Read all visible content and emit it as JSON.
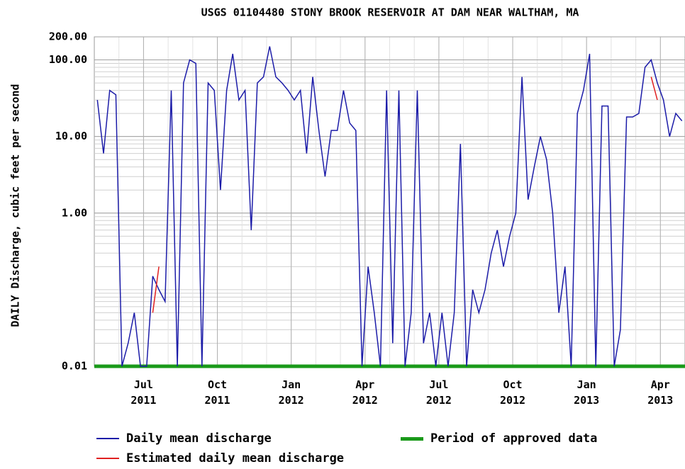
{
  "chart_data": {
    "type": "line",
    "title": "USGS 01104480 STONY BROOK RESERVOIR AT DAM NEAR WALTHAM, MA",
    "y_label": "DAILY Discharge, cubic feet per second",
    "log_scale": true,
    "grid": true,
    "ylim": [
      0.01,
      200
    ],
    "yticks": [
      0.01,
      {
        "value": 1,
        "label": "1.00"
      },
      {
        "value": 10,
        "label": "10.00"
      },
      {
        "value": 100,
        "label": "100.00"
      },
      {
        "value": 200,
        "label": "200.00"
      }
    ],
    "xlim": [
      "2011-05",
      "2013-04"
    ],
    "xticks": [
      {
        "value": "2011-07",
        "label": "Jul\n2011"
      },
      {
        "value": "2011-10",
        "label": "Oct\n2011"
      },
      {
        "value": "2012-01",
        "label": "Jan\n2012"
      },
      {
        "value": "2012-04",
        "label": "Apr\n2012"
      },
      {
        "value": "2012-07",
        "label": "Jul\n2012"
      },
      {
        "value": "2012-10",
        "label": "Oct\n2012"
      },
      {
        "value": "2013-01",
        "label": "Jan\n2013"
      },
      {
        "value": "2013-04",
        "label": "Apr\n2013"
      }
    ],
    "x": [
      "2011-05",
      "2011-05",
      "2011-05",
      "2011-05",
      "2011-06",
      "2011-06",
      "2011-06",
      "2011-06",
      "2011-07",
      "2011-07",
      "2011-07",
      "2011-07",
      "2011-08",
      "2011-08",
      "2011-08",
      "2011-08",
      "2011-09",
      "2011-09",
      "2011-09",
      "2011-09",
      "2011-10",
      "2011-10",
      "2011-10",
      "2011-10",
      "2011-11",
      "2011-11",
      "2011-11",
      "2011-11",
      "2011-12",
      "2011-12",
      "2011-12",
      "2011-12",
      "2012-01",
      "2012-01",
      "2012-01",
      "2012-01",
      "2012-02",
      "2012-02",
      "2012-02",
      "2012-02",
      "2012-03",
      "2012-03",
      "2012-03",
      "2012-03",
      "2012-04",
      "2012-04",
      "2012-04",
      "2012-04",
      "2012-05",
      "2012-05",
      "2012-05",
      "2012-05",
      "2012-06",
      "2012-06",
      "2012-06",
      "2012-06",
      "2012-07",
      "2012-07",
      "2012-07",
      "2012-07",
      "2012-08",
      "2012-08",
      "2012-08",
      "2012-08",
      "2012-09",
      "2012-09",
      "2012-09",
      "2012-09",
      "2012-10",
      "2012-10",
      "2012-10",
      "2012-10",
      "2012-11",
      "2012-11",
      "2012-11",
      "2012-11",
      "2012-12",
      "2012-12",
      "2012-12",
      "2012-12",
      "2013-01",
      "2013-01",
      "2013-01",
      "2013-01",
      "2013-02",
      "2013-02",
      "2013-02",
      "2013-02",
      "2013-03",
      "2013-03",
      "2013-03",
      "2013-03",
      "2013-04",
      "2013-04",
      "2013-04",
      "2013-04"
    ],
    "series": [
      {
        "name": "Daily mean discharge",
        "color": "#1c1ca8",
        "values": [
          30,
          6,
          40,
          35,
          0.01,
          0.02,
          0.05,
          0.01,
          0.01,
          0.15,
          0.1,
          0.07,
          40,
          0.01,
          50,
          100,
          90,
          0.01,
          50,
          40,
          2,
          40,
          120,
          30,
          40,
          0.6,
          50,
          60,
          150,
          60,
          50,
          40,
          30,
          40,
          6,
          60,
          12,
          3,
          12,
          12,
          40,
          15,
          12,
          0.01,
          0.2,
          0.05,
          0.01,
          40,
          0.02,
          40,
          0.01,
          0.05,
          40,
          0.02,
          0.05,
          0.01,
          0.05,
          0.01,
          0.05,
          8,
          0.01,
          0.1,
          0.05,
          0.1,
          0.3,
          0.6,
          0.2,
          0.5,
          1,
          60,
          1.5,
          4,
          10,
          5,
          1,
          0.05,
          0.2,
          0.01,
          20,
          40,
          120,
          0.01,
          25,
          25,
          0.01,
          0.03,
          18,
          18,
          20,
          80,
          100,
          50,
          30,
          10,
          20,
          16
        ]
      },
      {
        "name": "Estimated daily mean discharge",
        "color": "#e02020",
        "values": [
          null,
          null,
          null,
          null,
          null,
          null,
          null,
          null,
          null,
          0.05,
          0.2,
          null,
          null,
          null,
          null,
          null,
          null,
          null,
          null,
          null,
          null,
          null,
          null,
          null,
          null,
          null,
          null,
          null,
          null,
          null,
          null,
          null,
          null,
          null,
          null,
          null,
          null,
          null,
          null,
          null,
          null,
          null,
          null,
          null,
          null,
          null,
          null,
          null,
          null,
          null,
          null,
          null,
          null,
          null,
          null,
          null,
          null,
          null,
          null,
          null,
          null,
          null,
          null,
          null,
          null,
          null,
          null,
          null,
          null,
          null,
          null,
          null,
          null,
          null,
          null,
          null,
          null,
          null,
          null,
          null,
          null,
          null,
          null,
          null,
          null,
          null,
          null,
          null,
          null,
          null,
          60,
          30,
          null,
          null,
          null,
          null
        ]
      }
    ],
    "approved_period": {
      "name": "Period of approved data",
      "color": "#1a9a1a",
      "start": "2011-05",
      "end": "2013-04"
    }
  }
}
